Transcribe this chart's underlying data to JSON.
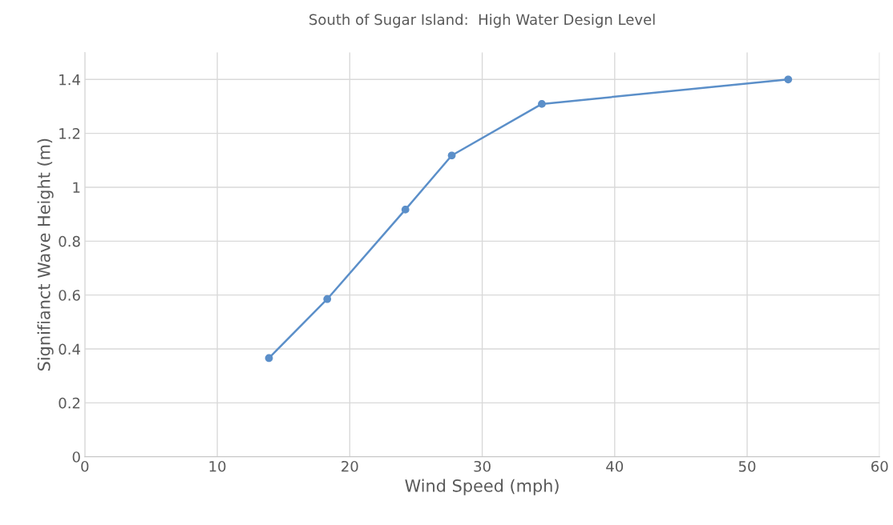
{
  "chart_data": {
    "type": "line",
    "title": "South of Sugar Island:  High Water Design Level",
    "xlabel": "Wind Speed (mph)",
    "ylabel": "Signifianct Wave Height (m)",
    "x": [
      13.9,
      18.3,
      24.2,
      27.7,
      34.5,
      53.1
    ],
    "series": [
      {
        "color": "#5b8fc9",
        "values": [
          0.366,
          0.585,
          0.917,
          1.118,
          1.309,
          1.4
        ]
      }
    ],
    "xlim": [
      0,
      60
    ],
    "xticks": [
      0,
      10,
      20,
      30,
      40,
      50,
      60
    ],
    "ylim": [
      0,
      1.5
    ],
    "yticks": [
      0,
      0.2,
      0.4,
      0.6,
      0.8,
      1,
      1.2,
      1.4
    ],
    "grid": true,
    "marker": "circle",
    "line_style": "solid"
  }
}
